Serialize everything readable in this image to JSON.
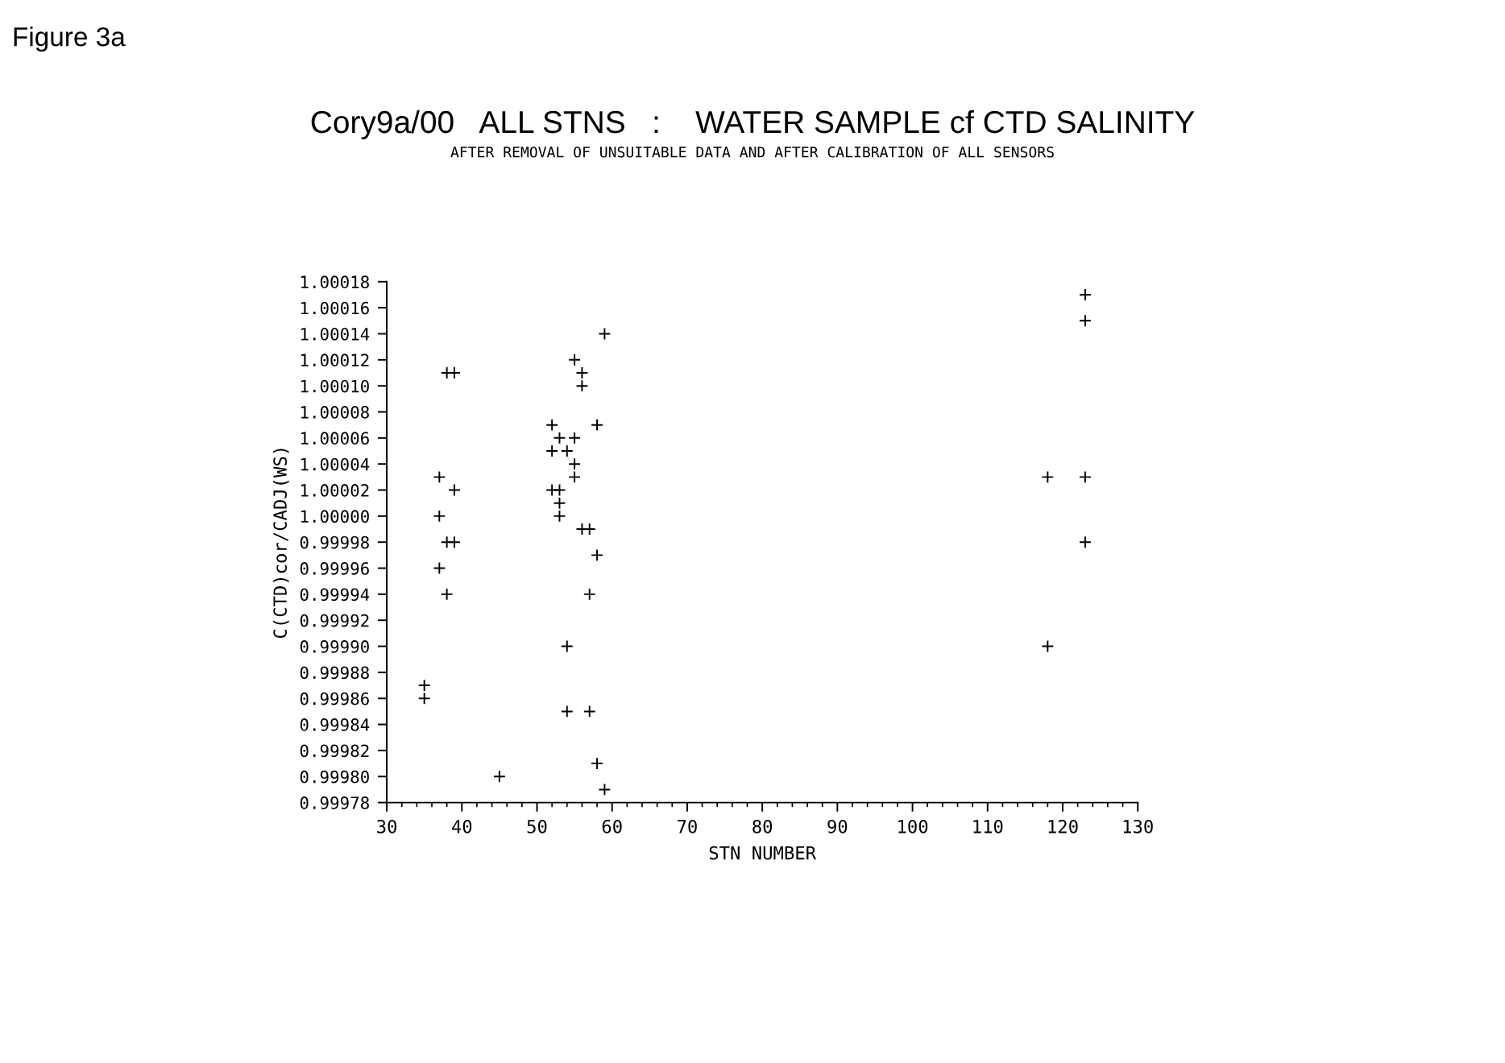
{
  "chart_data": {
    "type": "scatter",
    "title": "Cory9a/00   ALL STNS   :    WATER SAMPLE cf CTD SALINITY",
    "subtitle": "AFTER REMOVAL OF UNSUITABLE DATA AND AFTER CALIBRATION OF ALL SENSORS",
    "xlabel": "STN NUMBER",
    "ylabel": "C(CTD)cor/CADJ(WS)",
    "annotations": [
      "Figure 3a"
    ],
    "x": [
      38,
      39,
      37,
      39,
      37,
      38,
      39,
      37,
      38,
      35,
      35,
      45,
      59,
      55,
      56,
      56,
      52,
      58,
      53,
      55,
      52,
      54,
      55,
      55,
      52,
      53,
      53,
      53,
      56,
      57,
      58,
      57,
      54,
      54,
      57,
      58,
      59,
      123,
      123,
      118,
      123,
      123,
      118
    ],
    "values": [
      1.00011,
      1.00011,
      1.00003,
      1.00002,
      1.0,
      0.99998,
      0.99998,
      0.99996,
      0.99994,
      0.99987,
      0.99986,
      0.9998,
      1.00014,
      1.00012,
      1.00011,
      1.0001,
      1.00007,
      1.00007,
      1.00006,
      1.00006,
      1.00005,
      1.00005,
      1.00004,
      1.00003,
      1.00002,
      1.00002,
      1.00001,
      1.0,
      0.99999,
      0.99999,
      0.99997,
      0.99994,
      0.9999,
      0.99985,
      0.99985,
      0.99981,
      0.99979,
      1.00017,
      1.00015,
      1.00003,
      1.00003,
      0.99998,
      0.9999
    ],
    "color": "#000000",
    "marker": "cross",
    "xlim": [
      30,
      130
    ],
    "xticks": [
      30,
      40,
      50,
      60,
      70,
      80,
      90,
      100,
      110,
      120,
      130
    ],
    "ylim": [
      0.99978,
      1.00018
    ],
    "yticks": [
      {
        "value": 0.99978,
        "label": "0.99978"
      },
      {
        "value": 0.9998,
        "label": "0.99980"
      },
      {
        "value": 0.99982,
        "label": "0.99982"
      },
      {
        "value": 0.99984,
        "label": "0.99984"
      },
      {
        "value": 0.99986,
        "label": "0.99986"
      },
      {
        "value": 0.99988,
        "label": "0.99988"
      },
      {
        "value": 0.9999,
        "label": "0.99990"
      },
      {
        "value": 0.99992,
        "label": "0.99992"
      },
      {
        "value": 0.99994,
        "label": "0.99994"
      },
      {
        "value": 0.99996,
        "label": "0.99996"
      },
      {
        "value": 0.99998,
        "label": "0.99998"
      },
      {
        "value": 1,
        "label": "1.00000"
      },
      {
        "value": 1.00002,
        "label": "1.00002"
      },
      {
        "value": 1.00004,
        "label": "1.00004"
      },
      {
        "value": 1.00006,
        "label": "1.00006"
      },
      {
        "value": 1.00008,
        "label": "1.00008"
      },
      {
        "value": 1.0001,
        "label": "1.00010"
      },
      {
        "value": 1.00012,
        "label": "1.00012"
      },
      {
        "value": 1.00014,
        "label": "1.00014"
      },
      {
        "value": 1.00016,
        "label": "1.00016"
      },
      {
        "value": 1.00018,
        "label": "1.00018"
      }
    ],
    "grid": false,
    "legend": false
  }
}
